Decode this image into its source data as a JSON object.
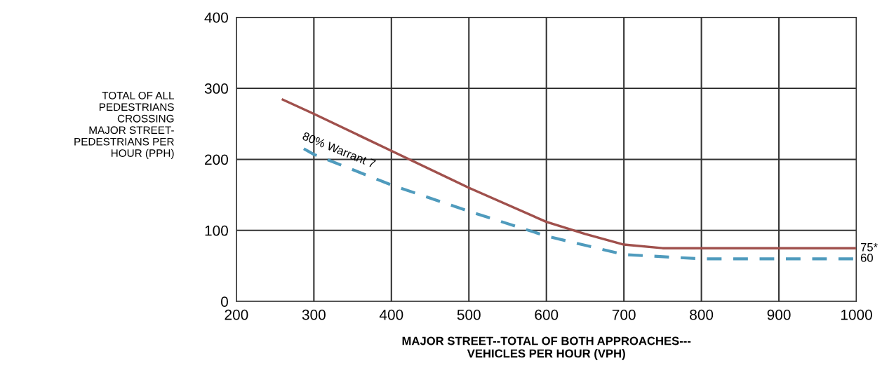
{
  "chart_data": {
    "type": "line",
    "xlabel": "MAJOR STREET--TOTAL OF BOTH APPROACHES---\nVEHICLES PER HOUR (VPH)",
    "ylabel": "TOTAL OF ALL\nPEDESTRIANS\nCROSSING\nMAJOR STREET-\nPEDESTRIANS PER\nHOUR (PPH)",
    "xlim": [
      200,
      1000
    ],
    "ylim": [
      0,
      400
    ],
    "xticks": [
      200,
      300,
      400,
      500,
      600,
      700,
      800,
      900,
      1000
    ],
    "yticks": [
      0,
      100,
      200,
      300,
      400
    ],
    "grid": true,
    "legend": false,
    "series": [
      {
        "color": "#a0504c",
        "line_style": "solid",
        "x": [
          260,
          300,
          400,
          500,
          600,
          650,
          700,
          750,
          800,
          1000
        ],
        "values": [
          284,
          264,
          212,
          160,
          112,
          95,
          80,
          75,
          75,
          75
        ]
      },
      {
        "color": "#4f9bbd",
        "line_style": "dashed",
        "x": [
          287,
          300,
          400,
          500,
          600,
          700,
          800,
          1000
        ],
        "values": [
          215,
          207,
          164,
          127,
          92,
          66,
          60,
          60
        ]
      }
    ],
    "annotations": [
      "80% Warrant 7",
      {
        "text": "75*",
        "x": 1000,
        "y": 75
      },
      {
        "text": "60",
        "x": 1000,
        "y": 60
      }
    ]
  }
}
